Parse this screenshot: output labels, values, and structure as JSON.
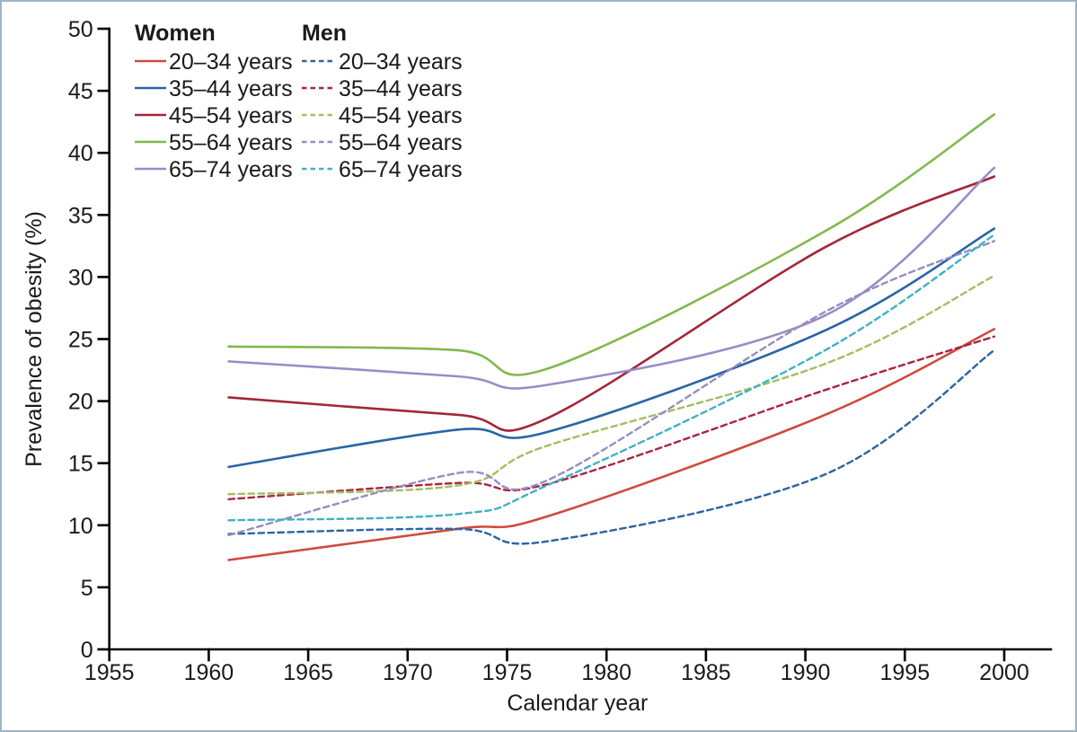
{
  "chart_data": {
    "type": "line",
    "title": "",
    "xlabel": "Calendar year",
    "ylabel": "Prevalence of obesity (%)",
    "xlim": [
      1955,
      2002
    ],
    "ylim": [
      0,
      50
    ],
    "x_ticks": [
      1955,
      1960,
      1965,
      1970,
      1975,
      1980,
      1985,
      1990,
      1995,
      2000
    ],
    "y_ticks": [
      0,
      5,
      10,
      15,
      20,
      25,
      30,
      35,
      40,
      45,
      50
    ],
    "grid": false,
    "legend_position": "top-left",
    "x": [
      1961,
      1972.5,
      1977,
      1991,
      1999.5
    ],
    "groups": [
      {
        "name": "Women",
        "line_style": "solid",
        "series": [
          {
            "label": "20–34 years",
            "color": "#cf4a3f",
            "values": [
              7.2,
              9.7,
              10.7,
              18.9,
              25.8
            ]
          },
          {
            "label": "35–44 years",
            "color": "#2a65a5",
            "values": [
              14.7,
              17.7,
              17.5,
              25.7,
              33.9
            ]
          },
          {
            "label": "45–54 years",
            "color": "#a32638",
            "values": [
              20.3,
              18.9,
              18.6,
              32.4,
              38.1
            ]
          },
          {
            "label": "55–64 years",
            "color": "#83b84e",
            "values": [
              24.4,
              24.1,
              22.6,
              33.7,
              43.1
            ]
          },
          {
            "label": "65–74 years",
            "color": "#9b8cc4",
            "values": [
              23.2,
              22.0,
              21.3,
              26.9,
              38.8
            ]
          }
        ]
      },
      {
        "name": "Men",
        "line_style": "dashed",
        "series": [
          {
            "label": "20–34 years",
            "color": "#2d639f",
            "values": [
              9.3,
              9.7,
              8.7,
              14.1,
              24.1
            ]
          },
          {
            "label": "35–44 years",
            "color": "#ab2440",
            "values": [
              12.1,
              13.4,
              13.3,
              20.9,
              25.2
            ]
          },
          {
            "label": "45–54 years",
            "color": "#a2bf62",
            "values": [
              12.5,
              13.2,
              16.4,
              23.0,
              30.1
            ]
          },
          {
            "label": "55–64 years",
            "color": "#968dc0",
            "values": [
              9.2,
              14.2,
              13.6,
              27.2,
              32.9
            ]
          },
          {
            "label": "65–74 years",
            "color": "#41b0c6",
            "values": [
              10.4,
              10.9,
              13.2,
              24.1,
              33.4
            ]
          }
        ]
      }
    ],
    "colors": {
      "axis": "#000000",
      "text": "#1a1a1a",
      "frame_border": "#9fb5c6"
    }
  }
}
